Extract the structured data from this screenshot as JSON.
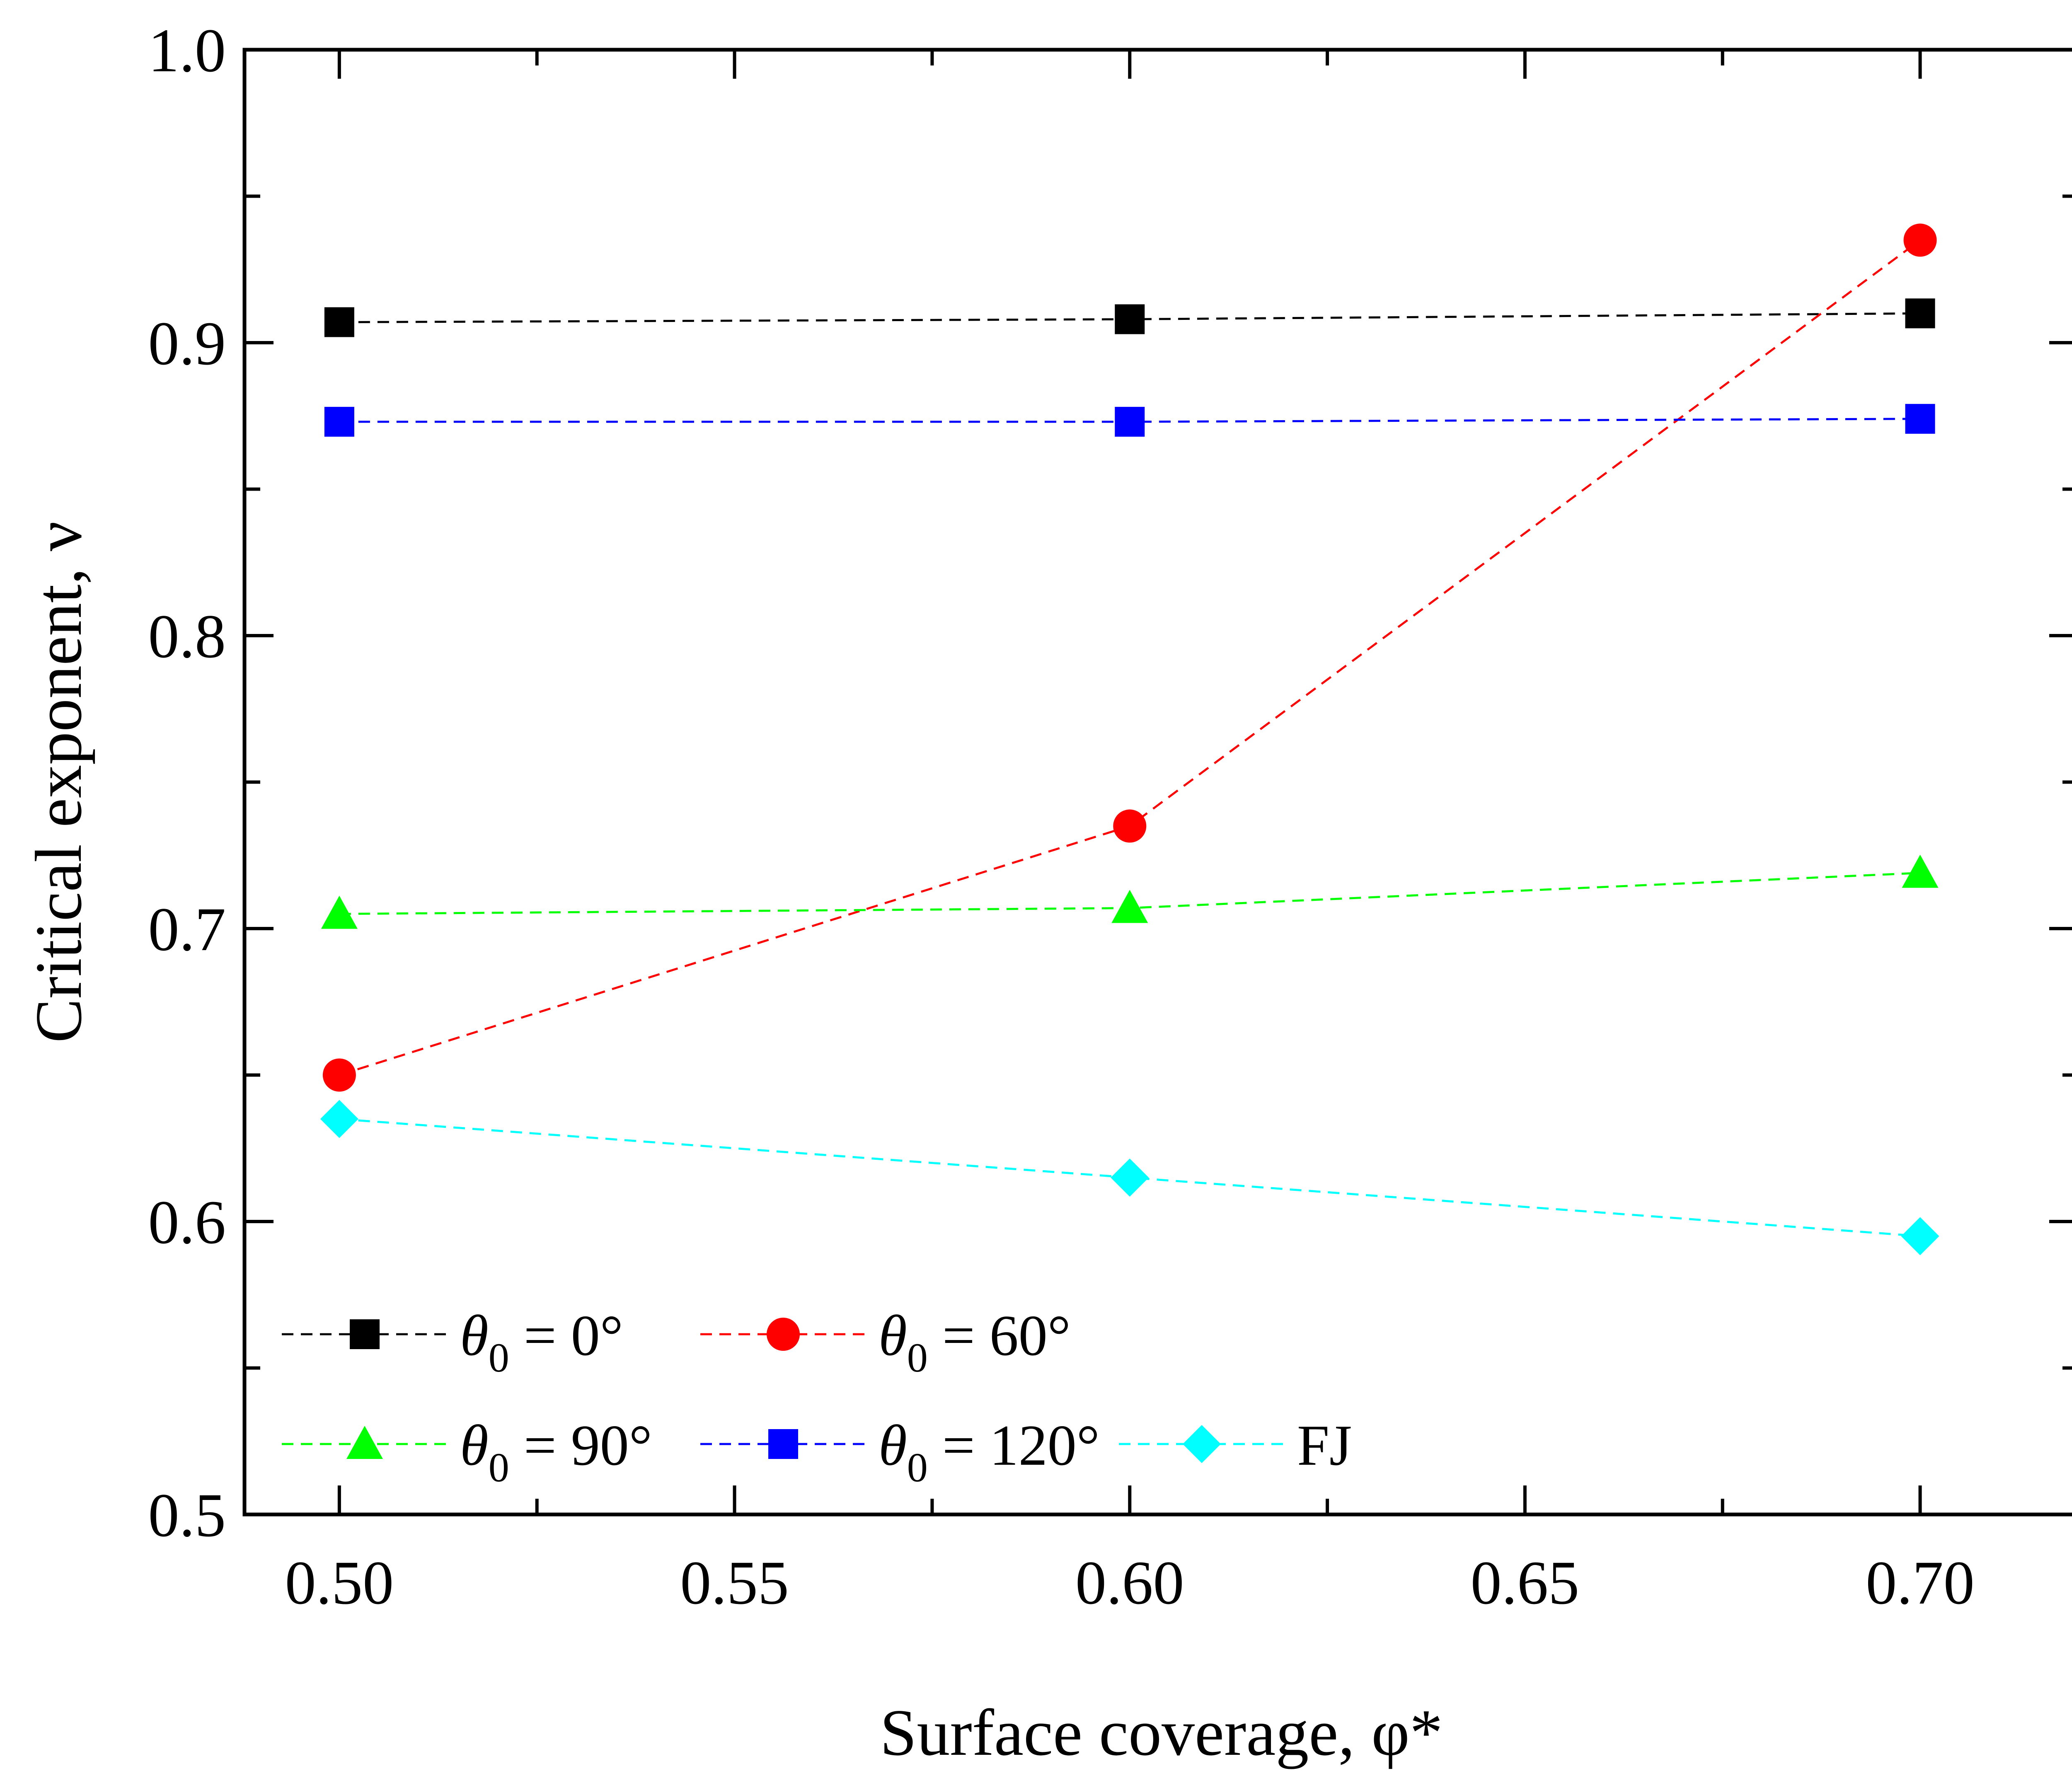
{
  "chart_data": {
    "type": "line",
    "xlabel": "Surface coverage, φ*",
    "ylabel": "Critical exponent, ν",
    "xlim": [
      0.488,
      0.72
    ],
    "ylim": [
      0.5,
      1.0
    ],
    "x_ticks": [
      "0.50",
      "0.55",
      "0.60",
      "0.65",
      "0.70"
    ],
    "y_ticks": [
      "0.5",
      "0.6",
      "0.7",
      "0.8",
      "0.9",
      "1.0"
    ],
    "x": [
      0.5,
      0.6,
      0.7
    ],
    "grid": false,
    "legend_placement": "bottom-left",
    "series": [
      {
        "name_main": "θ",
        "name_sub": "0",
        "name_rest": " = 0°",
        "values": [
          0.907,
          0.908,
          0.91
        ],
        "color": "#000000",
        "marker": "square"
      },
      {
        "name_main": "θ",
        "name_sub": "0",
        "name_rest": " = 60°",
        "values": [
          0.65,
          0.735,
          0.935
        ],
        "color": "#ff0000",
        "marker": "circle"
      },
      {
        "name_main": "θ",
        "name_sub": "0",
        "name_rest": " = 90°",
        "values": [
          0.705,
          0.707,
          0.719
        ],
        "color": "#00ff00",
        "marker": "triangle"
      },
      {
        "name_main": "θ",
        "name_sub": "0",
        "name_rest": " = 120°",
        "values": [
          0.873,
          0.873,
          0.874
        ],
        "color": "#0000ff",
        "marker": "square"
      },
      {
        "name_main": "FJ",
        "name_sub": "",
        "name_rest": "",
        "values": [
          0.635,
          0.615,
          0.595
        ],
        "color": "#00ffff",
        "marker": "diamond"
      }
    ]
  }
}
